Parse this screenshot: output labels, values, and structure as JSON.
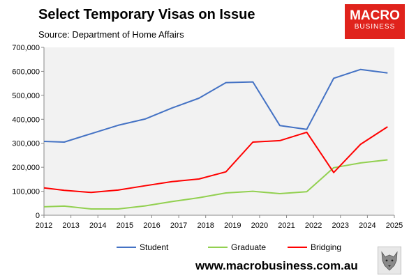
{
  "header": {
    "title": "Select Temporary Visas on Issue",
    "subtitle": "Source: Department of Home Affairs"
  },
  "logo": {
    "line1": "MACRO",
    "line2": "BUSINESS",
    "color": "#e0231c"
  },
  "footer": {
    "website": "www.macrobusiness.com.au"
  },
  "chart_data": {
    "type": "line",
    "title": "Select Temporary Visas on Issue",
    "subtitle": "Source: Department of Home Affairs",
    "xlabel": "",
    "ylabel": "",
    "xlim": [
      2012,
      2025
    ],
    "ylim": [
      0,
      700000
    ],
    "x_ticks": [
      "2012",
      "2013",
      "2014",
      "2015",
      "2016",
      "2017",
      "2018",
      "2019",
      "2020",
      "2021",
      "2022",
      "2023",
      "2024",
      "2025"
    ],
    "y_ticks": [
      "0",
      "100,000",
      "200,000",
      "300,000",
      "400,000",
      "500,000",
      "600,000",
      "700,000"
    ],
    "grid": false,
    "plot_background": "#f2f2f2",
    "legend_position": "bottom",
    "series": [
      {
        "name": "Student",
        "color": "#4472c4",
        "points": [
          [
            2012.0,
            308000
          ],
          [
            2012.75,
            305000
          ],
          [
            2013.75,
            340000
          ],
          [
            2014.75,
            375000
          ],
          [
            2015.75,
            401000
          ],
          [
            2016.75,
            447000
          ],
          [
            2017.75,
            488000
          ],
          [
            2018.75,
            553000
          ],
          [
            2019.75,
            556000
          ],
          [
            2020.75,
            374000
          ],
          [
            2021.75,
            358000
          ],
          [
            2022.75,
            571000
          ],
          [
            2023.75,
            608000
          ],
          [
            2024.75,
            593000
          ]
        ]
      },
      {
        "name": "Graduate",
        "color": "#92d050",
        "points": [
          [
            2012.0,
            35000
          ],
          [
            2012.75,
            38000
          ],
          [
            2013.75,
            26000
          ],
          [
            2014.75,
            26000
          ],
          [
            2015.75,
            39000
          ],
          [
            2016.75,
            57000
          ],
          [
            2017.75,
            73000
          ],
          [
            2018.75,
            93000
          ],
          [
            2019.75,
            100000
          ],
          [
            2020.75,
            90000
          ],
          [
            2021.75,
            98000
          ],
          [
            2022.75,
            198000
          ],
          [
            2023.75,
            218000
          ],
          [
            2024.75,
            231000
          ]
        ]
      },
      {
        "name": "Bridging",
        "color": "#ff0000",
        "points": [
          [
            2012.0,
            114000
          ],
          [
            2012.75,
            104000
          ],
          [
            2013.75,
            95000
          ],
          [
            2014.75,
            105000
          ],
          [
            2015.75,
            123000
          ],
          [
            2016.75,
            140000
          ],
          [
            2017.75,
            151000
          ],
          [
            2018.75,
            181000
          ],
          [
            2019.75,
            305000
          ],
          [
            2020.75,
            311000
          ],
          [
            2021.75,
            346000
          ],
          [
            2022.75,
            178000
          ],
          [
            2023.75,
            296000
          ],
          [
            2024.75,
            369000
          ]
        ]
      }
    ]
  }
}
